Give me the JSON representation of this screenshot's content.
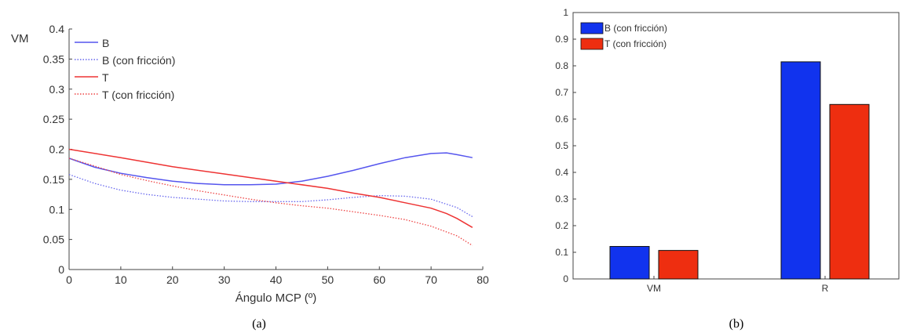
{
  "chart_data": [
    {
      "type": "line",
      "caption": "(a)",
      "xlabel": "Ángulo MCP (º)",
      "ylabel": "VM",
      "xlim": [
        0,
        80
      ],
      "ylim": [
        0,
        0.4
      ],
      "xticks": [
        0,
        10,
        20,
        30,
        40,
        50,
        60,
        70,
        80
      ],
      "yticks": [
        0,
        0.05,
        0.1,
        0.15,
        0.2,
        0.25,
        0.3,
        0.35,
        0.4
      ],
      "legend_position": "top-left",
      "series": [
        {
          "name": "B",
          "color": "#5555ee",
          "style": "solid",
          "x": [
            0,
            5,
            10,
            15,
            20,
            25,
            30,
            35,
            40,
            45,
            50,
            55,
            60,
            65,
            70,
            73,
            75,
            78
          ],
          "y": [
            0.185,
            0.17,
            0.16,
            0.153,
            0.147,
            0.143,
            0.141,
            0.141,
            0.142,
            0.147,
            0.155,
            0.165,
            0.176,
            0.186,
            0.193,
            0.194,
            0.191,
            0.186
          ]
        },
        {
          "name": "B (con fricción)",
          "color": "#6666ee",
          "style": "dotted",
          "x": [
            0,
            5,
            10,
            15,
            20,
            25,
            30,
            35,
            40,
            45,
            50,
            55,
            60,
            65,
            70,
            75,
            78
          ],
          "y": [
            0.158,
            0.143,
            0.132,
            0.125,
            0.12,
            0.117,
            0.114,
            0.113,
            0.113,
            0.113,
            0.116,
            0.12,
            0.123,
            0.122,
            0.117,
            0.103,
            0.088
          ]
        },
        {
          "name": "T",
          "color": "#ee3333",
          "style": "solid",
          "x": [
            0,
            10,
            20,
            30,
            40,
            50,
            55,
            60,
            65,
            70,
            73,
            75,
            78
          ],
          "y": [
            0.2,
            0.186,
            0.171,
            0.159,
            0.147,
            0.135,
            0.127,
            0.12,
            0.111,
            0.102,
            0.093,
            0.085,
            0.07
          ]
        },
        {
          "name": "T (con fricción)",
          "color": "#ee4444",
          "style": "dotted",
          "x": [
            0,
            5,
            10,
            15,
            20,
            25,
            30,
            35,
            40,
            45,
            50,
            55,
            60,
            65,
            70,
            75,
            78
          ],
          "y": [
            0.185,
            0.172,
            0.158,
            0.148,
            0.139,
            0.131,
            0.124,
            0.117,
            0.111,
            0.106,
            0.102,
            0.096,
            0.09,
            0.083,
            0.072,
            0.056,
            0.04
          ]
        }
      ]
    },
    {
      "type": "bar",
      "caption": "(b)",
      "categories": [
        "VM",
        "R"
      ],
      "ylim": [
        0,
        1
      ],
      "yticks": [
        0,
        0.1,
        0.2,
        0.3,
        0.4,
        0.5,
        0.6,
        0.7,
        0.8,
        0.9,
        1
      ],
      "legend_position": "top-left",
      "series": [
        {
          "name": "B (con fricción)",
          "color": "#1133ee",
          "values": [
            0.122,
            0.815
          ]
        },
        {
          "name": "T (con fricción)",
          "color": "#ee2e10",
          "values": [
            0.107,
            0.655
          ]
        }
      ]
    }
  ]
}
